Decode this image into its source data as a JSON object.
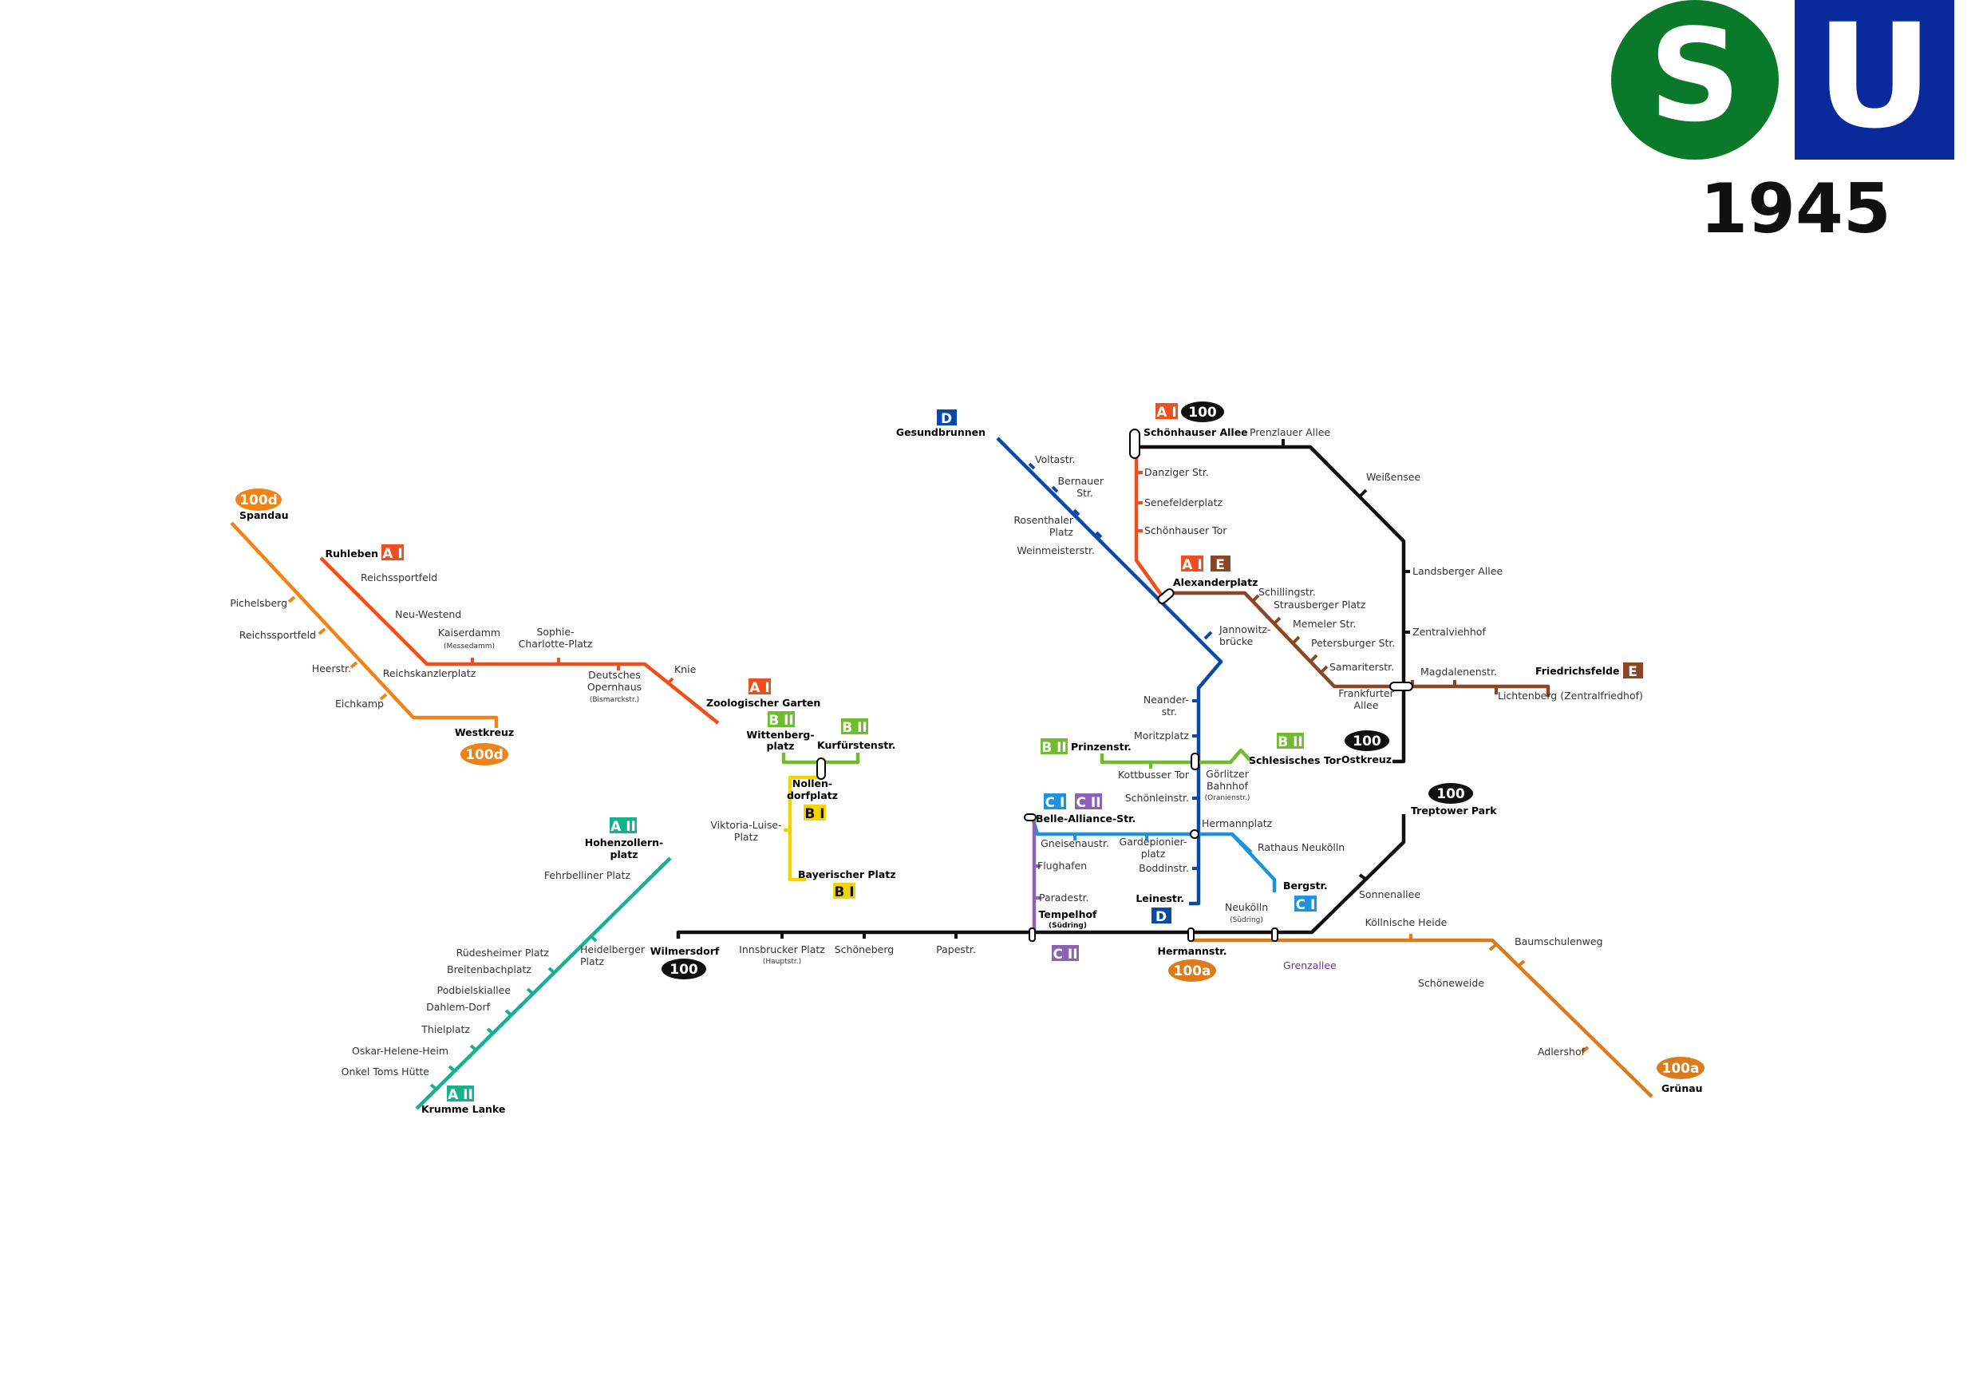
{
  "year": "1945",
  "logos": {
    "s_bahn": "S",
    "u_bahn": "U",
    "s_color": "#0a7a2a",
    "u_color": "#0a2a9c"
  },
  "colors": {
    "A_I": "#f04e1c",
    "A_II": "#16b28e",
    "B_I": "#f2d500",
    "B_II": "#6fbc2e",
    "C_I": "#1c93dc",
    "C_II": "#8c62b4",
    "D": "#0a4aa4",
    "E": "#8a4726",
    "ring": "#111111",
    "spandau": "#f28218",
    "gruenau": "#dd7a1a"
  },
  "badges": {
    "d_north": "D",
    "ai_schoenhauser": "A I",
    "ring_schoenhauser": "100",
    "ai_alex": "A I",
    "e_alex": "E",
    "e_friedrichsfelde": "E",
    "ring_ostkreuz": "100",
    "ring_treptow": "100",
    "ring_wilmersdorf": "100",
    "s100d_spandau": "100d",
    "s100d_westkreuz": "100d",
    "ai_ruhleben": "A I",
    "ai_zoo": "A I",
    "bii_wittenberg": "B II",
    "bii_kurf": "B II",
    "bi_nollendorf": "B I",
    "bi_bayer": "B I",
    "bii_prinzen": "B II",
    "bii_schles": "B II",
    "ci_belle": "C I",
    "cii_belle": "C II",
    "ci_berg": "C I",
    "cii_south": "C II",
    "d_leine": "D",
    "aii_hohenz": "A II",
    "aii_krumme": "A II",
    "s100a_hermann": "100a",
    "s100a_gruenau": "100a"
  },
  "stations": {
    "gesundbrunnen": "Gesundbrunnen",
    "voltastr": "Voltastr.",
    "bernauer1": "Bernauer",
    "bernauer2": "Str.",
    "rosenthaler1": "Rosenthaler",
    "rosenthaler2": "Platz",
    "weinmeister": "Weinmeisterstr.",
    "jannowitz1": "Jannowitz-",
    "jannowitz2": "brücke",
    "neander1": "Neander-",
    "neander2": "str.",
    "moritzplatz": "Moritzplatz",
    "kottbusser": "Kottbusser Tor",
    "schoenleinstr": "Schönleinstr.",
    "hermannplatz": "Hermannplatz",
    "boddinstr": "Boddinstr.",
    "leinestr": "Leinestr.",
    "schoenhauser_allee": "Schönhauser Allee",
    "prenzlauer": "Prenzlauer Allee",
    "danziger": "Danziger Str.",
    "senefelder": "Senefelderplatz",
    "schoenhauser_tor": "Schönhauser Tor",
    "alexanderplatz": "Alexanderplatz",
    "weissensee": "Weißensee",
    "landsberger": "Landsberger Allee",
    "zentralviehhof": "Zentralviehhof",
    "frankfurter1": "Frankfurter",
    "frankfurter2": "Allee",
    "ostkreuz": "Ostkreuz",
    "schillingstr": "Schillingstr.",
    "strausberger": "Strausberger Platz",
    "memeler": "Memeler Str.",
    "petersburger": "Petersburger Str.",
    "samariter": "Samariterstr.",
    "magdalenen": "Magdalenenstr.",
    "friedrichsfelde": "Friedrichsfelde",
    "lichtenberg": "Lichtenberg (Zentralfriedhof)",
    "spandau": "Spandau",
    "pichelsberg": "Pichelsberg",
    "reichssportfeld_s": "Reichssportfeld",
    "heerstr": "Heerstr.",
    "eichkamp": "Eichkamp",
    "westkreuz": "Westkreuz",
    "ruhleben": "Ruhleben",
    "reichssportfeld_u": "Reichssportfeld",
    "neu_westend": "Neu-Westend",
    "kaiserdamm": "Kaiserdamm",
    "messedamm": "(Messedamm)",
    "reichskanzlerplatz": "Reichskanzlerplatz",
    "sophie1": "Sophie-",
    "sophie2": "Charlotte-Platz",
    "opernhaus1": "Deutsches",
    "opernhaus2": "Opernhaus",
    "bismarckstr": "(Bismarckstr.)",
    "knie": "Knie",
    "zoo": "Zoologischer Garten",
    "wittenberg1": "Wittenberg-",
    "wittenberg2": "platz",
    "kurfuersten": "Kurfürstenstr.",
    "nollendorf1": "Nollen-",
    "nollendorf2": "dorfplatz",
    "viktoria1": "Viktoria-Luise-",
    "viktoria2": "Platz",
    "bayerischer": "Bayerischer Platz",
    "prinzenstr": "Prinzenstr.",
    "goerlitzer1": "Görlitzer",
    "goerlitzer2": "Bahnhof",
    "oranienstr": "(Oranienstr.)",
    "schlesisches": "Schlesisches Tor",
    "belle_alliance": "Belle-Alliance-Str.",
    "gneisenau": "Gneisenaustr.",
    "gardepionier1": "Gardepionier-",
    "gardepionier2": "platz",
    "rathaus_neukoelln": "Rathaus Neukölln",
    "bergstr": "Bergstr.",
    "flughafen": "Flughafen",
    "paradestr": "Paradestr.",
    "tempelhof": "Tempelhof",
    "suedring1": "(Südring)",
    "hohenzollern1": "Hohenzollern-",
    "hohenzollern2": "platz",
    "fehrbelliner": "Fehrbelliner Platz",
    "heidelberger1": "Heidelberger",
    "heidelberger2": "Platz",
    "ruedesheimer": "Rüdesheimer Platz",
    "breitenbach": "Breitenbachplatz",
    "podbielski": "Podbielskiallee",
    "dahlem": "Dahlem-Dorf",
    "thielplatz": "Thielplatz",
    "oskar": "Oskar-Helene-Heim",
    "onkel_tom": "Onkel Toms Hütte",
    "krumme_lanke": "Krumme Lanke",
    "wilmersdorf": "Wilmersdorf",
    "innsbrucker": "Innsbrucker Platz",
    "hauptstr": "(Hauptstr.)",
    "schoeneberg": "Schöneberg",
    "papestr": "Papestr.",
    "hermannstr": "Hermannstr.",
    "neukoelln": "Neukölln",
    "suedring2": "(Südring)",
    "grenzallee": "Grenzallee",
    "treptower": "Treptower Park",
    "sonnenallee": "Sonnenallee",
    "koellnische": "Köllnische Heide",
    "baumschulenweg": "Baumschulenweg",
    "schoeneweide": "Schöneweide",
    "adlershof": "Adlershof",
    "gruenau": "Grünau"
  }
}
